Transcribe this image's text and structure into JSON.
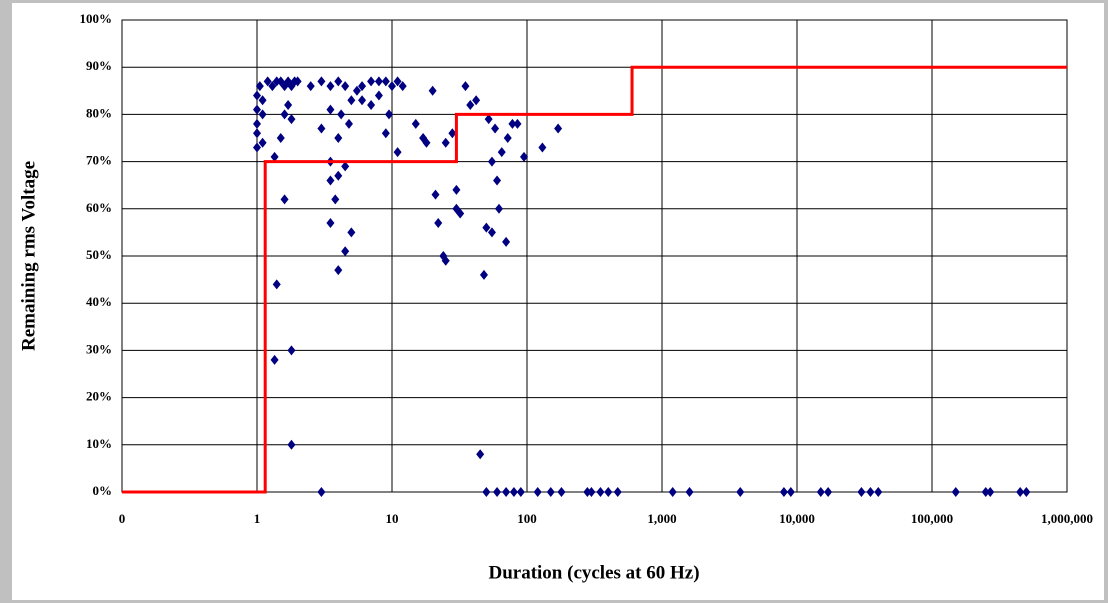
{
  "chart_data": {
    "type": "scatter",
    "x_label": "Duration (cycles at 60 Hz)",
    "y_label": "Remaining rms Voltage",
    "xscale": "log",
    "grid": true,
    "xlim": [
      0.1,
      1000000
    ],
    "ylim": [
      0,
      100
    ],
    "xticks": [
      {
        "value": 0.1,
        "label": "0"
      },
      1,
      10,
      100,
      {
        "value": 1000,
        "label": "1,000"
      },
      {
        "value": 10000,
        "label": "10,000"
      },
      {
        "value": 100000,
        "label": "100,000"
      },
      {
        "value": 1000000,
        "label": "1,000,000"
      }
    ],
    "yticks": [
      {
        "value": 0,
        "label": "0%"
      },
      {
        "value": 10,
        "label": "10%"
      },
      {
        "value": 20,
        "label": "20%"
      },
      {
        "value": 30,
        "label": "30%"
      },
      {
        "value": 40,
        "label": "40%"
      },
      {
        "value": 50,
        "label": "50%"
      },
      {
        "value": 60,
        "label": "60%"
      },
      {
        "value": 70,
        "label": "70%"
      },
      {
        "value": 80,
        "label": "80%"
      },
      {
        "value": 90,
        "label": "90%"
      },
      {
        "value": 100,
        "label": "100%"
      }
    ],
    "series": [
      {
        "type": "scatter",
        "color": "#000080",
        "x": [
          1,
          1,
          1,
          1,
          1,
          1.05,
          1.1,
          1.1,
          1.1,
          1.2,
          1.3,
          1.4,
          1.5,
          1.6,
          1.7,
          1.8,
          1.9,
          1.35,
          1.6,
          1.4,
          1.35,
          1.8,
          1.8,
          1.6,
          1.8,
          1.7,
          1.5,
          2,
          2.5,
          3,
          3.5,
          4,
          4.5,
          3,
          3.5,
          3.5,
          3.8,
          3.5,
          4,
          4.5,
          5,
          4,
          4.5,
          4,
          4.2,
          5,
          3,
          3.5,
          4.8,
          5.5,
          6,
          7,
          8,
          9,
          10,
          11,
          12,
          9,
          9.5,
          11,
          6,
          7,
          8,
          15,
          17,
          18,
          20,
          21,
          22,
          24,
          25,
          25,
          28,
          30,
          30,
          32,
          35,
          38,
          42,
          45,
          48,
          50,
          52,
          55,
          55,
          58,
          60,
          62,
          65,
          70,
          72,
          78,
          85,
          95,
          130,
          170,
          50,
          60,
          70,
          80,
          90,
          120,
          150,
          180,
          280,
          300,
          350,
          400,
          470,
          1200,
          1600,
          3800,
          8000,
          9000,
          15000,
          17000,
          30000,
          35000,
          40000,
          150000,
          250000,
          270000,
          450000,
          500000
        ],
        "values": [
          73,
          76,
          78,
          81,
          84,
          86,
          74,
          80,
          83,
          87,
          86,
          87,
          87,
          86,
          87,
          86,
          87,
          71,
          62,
          44,
          28,
          30,
          10,
          80,
          79,
          82,
          75,
          87,
          86,
          87,
          86,
          87,
          86,
          77,
          70,
          66,
          62,
          57,
          47,
          51,
          55,
          67,
          69,
          75,
          80,
          83,
          0,
          81,
          78,
          85,
          86,
          87,
          87,
          87,
          86,
          87,
          86,
          76,
          80,
          72,
          83,
          82,
          84,
          78,
          75,
          74,
          85,
          63,
          57,
          50,
          49,
          74,
          76,
          60,
          64,
          59,
          86,
          82,
          83,
          8,
          46,
          56,
          79,
          70,
          55,
          77,
          66,
          60,
          72,
          53,
          75,
          78,
          78,
          71,
          73,
          77,
          0,
          0,
          0,
          0,
          0,
          0,
          0,
          0,
          0,
          0,
          0,
          0,
          0,
          0,
          0,
          0,
          0,
          0,
          0,
          0,
          0,
          0,
          0,
          0,
          0,
          0,
          0,
          0
        ]
      },
      {
        "type": "line",
        "color": "#ff0000",
        "x": [
          0.1,
          1.15,
          1.15,
          30,
          30,
          600,
          600,
          1000000
        ],
        "values": [
          0,
          0,
          70,
          70,
          80,
          80,
          90,
          90
        ]
      }
    ]
  }
}
